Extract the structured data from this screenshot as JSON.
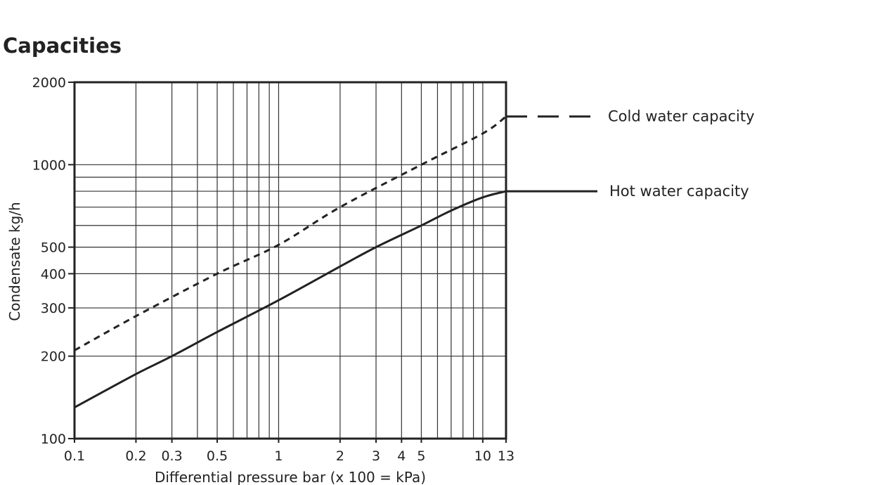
{
  "page": {
    "title": "Capacities"
  },
  "chart_data": {
    "type": "line",
    "xlabel": "Differential pressure bar (x 100 = kPa)",
    "ylabel": "Condensate kg/h",
    "xscale": "log",
    "yscale": "log",
    "xlim": [
      0.1,
      13
    ],
    "ylim": [
      100,
      2000
    ],
    "grid": true,
    "legend": "right",
    "x_ticks": [
      {
        "value": 0.1,
        "label": "0.1"
      },
      {
        "value": 0.2,
        "label": "0.2"
      },
      {
        "value": 0.3,
        "label": "0.3"
      },
      {
        "value": 0.5,
        "label": "0.5"
      },
      {
        "value": 1,
        "label": "1"
      },
      {
        "value": 2,
        "label": "2"
      },
      {
        "value": 3,
        "label": "3"
      },
      {
        "value": 4,
        "label": "4"
      },
      {
        "value": 5,
        "label": "5"
      },
      {
        "value": 10,
        "label": "10"
      },
      {
        "value": 13,
        "label": "13"
      }
    ],
    "y_ticks": [
      {
        "value": 100,
        "label": "100"
      },
      {
        "value": 200,
        "label": "200"
      },
      {
        "value": 300,
        "label": "300"
      },
      {
        "value": 400,
        "label": "400"
      },
      {
        "value": 500,
        "label": "500"
      },
      {
        "value": 1000,
        "label": "1000"
      },
      {
        "value": 2000,
        "label": "2000"
      }
    ],
    "x_gridlines": [
      0.1,
      0.2,
      0.3,
      0.4,
      0.5,
      0.6,
      0.7,
      0.8,
      0.9,
      1,
      2,
      3,
      4,
      5,
      6,
      7,
      8,
      9,
      10,
      13
    ],
    "y_gridlines": [
      100,
      200,
      300,
      400,
      500,
      600,
      700,
      800,
      900,
      1000,
      2000
    ],
    "series": [
      {
        "name": "Cold water capacity",
        "style": "dashed",
        "color": "#222222",
        "x": [
          0.1,
          0.2,
          0.5,
          1,
          2,
          5,
          10,
          13
        ],
        "y": [
          210,
          280,
          400,
          510,
          700,
          1000,
          1300,
          1500
        ]
      },
      {
        "name": "Hot water capacity",
        "style": "solid",
        "color": "#222222",
        "x": [
          0.1,
          0.2,
          0.3,
          0.5,
          1,
          2,
          3,
          5,
          7,
          10,
          13
        ],
        "y": [
          130,
          172,
          200,
          245,
          320,
          425,
          500,
          600,
          680,
          760,
          800
        ]
      }
    ]
  }
}
